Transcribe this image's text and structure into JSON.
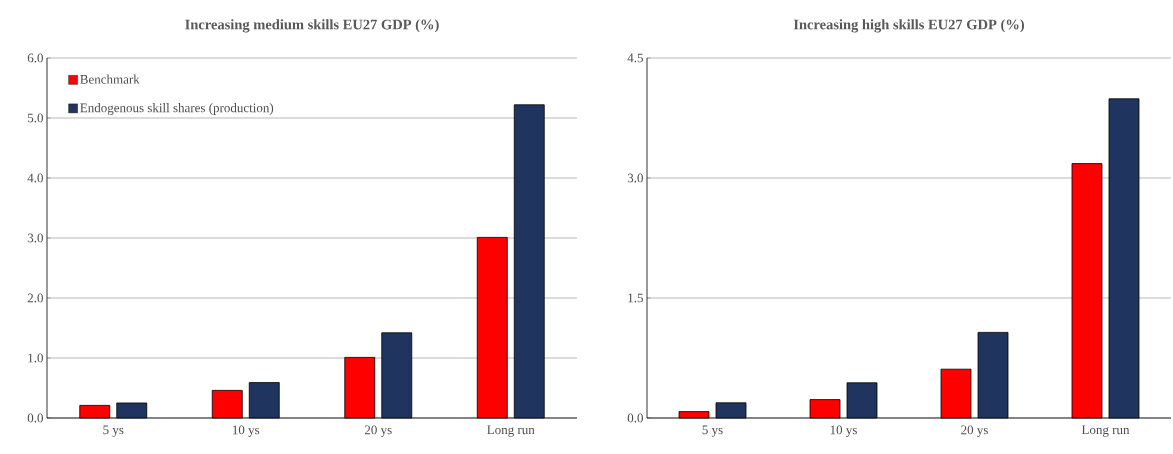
{
  "chart_data": [
    {
      "type": "bar",
      "title": "Increasing medium skills EU27 GDP (%)",
      "categories": [
        "5 ys",
        "10 ys",
        "20 ys",
        "Long run"
      ],
      "series": [
        {
          "name": "Benchmark",
          "color": "#ff0000",
          "values": [
            0.21,
            0.46,
            1.01,
            3.01
          ]
        },
        {
          "name": "Endogenous skill shares (production)",
          "color": "#1f3560",
          "values": [
            0.25,
            0.59,
            1.42,
            5.22
          ]
        }
      ],
      "ylim": [
        0,
        6
      ],
      "yticks": [
        {
          "value": 0,
          "label": "0.0"
        },
        {
          "value": 1,
          "label": "1.0"
        },
        {
          "value": 2,
          "label": "2.0"
        },
        {
          "value": 3,
          "label": "3.0"
        },
        {
          "value": 4,
          "label": "4.0"
        },
        {
          "value": 5,
          "label": "5.0"
        },
        {
          "value": 6,
          "label": "6.0"
        }
      ],
      "grid": "y",
      "legend": "top left"
    },
    {
      "type": "bar",
      "title": "Increasing high skills EU27 GDP (%)",
      "categories": [
        "5 ys",
        "10 ys",
        "20 ys",
        "Long run"
      ],
      "series": [
        {
          "color": "#ff0000",
          "values": [
            0.08,
            0.23,
            0.61,
            3.18
          ]
        },
        {
          "color": "#1f3560",
          "values": [
            0.19,
            0.44,
            1.07,
            3.99
          ]
        }
      ],
      "ylim": [
        0,
        4.5
      ],
      "yticks": [
        {
          "value": 0,
          "label": "0.0"
        },
        {
          "value": 1.5,
          "label": "1.5"
        },
        {
          "value": 3,
          "label": "3.0"
        },
        {
          "value": 4.5,
          "label": "4.5"
        }
      ],
      "grid": "y"
    }
  ]
}
